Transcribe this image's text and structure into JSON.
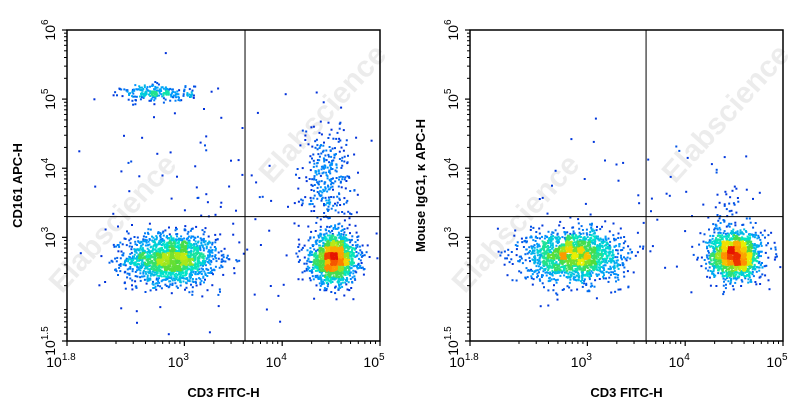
{
  "watermark": "Elabscience",
  "chart_data": [
    {
      "type": "scatter",
      "title": "",
      "xlabel": "CD3 FITC-H",
      "ylabel": "CD161 APC-H",
      "x_scale": "log",
      "y_scale": "log",
      "xlim_exp": [
        1.8,
        5
      ],
      "ylim_exp": [
        1.5,
        6
      ],
      "x_ticks": [
        {
          "base": "10",
          "exp": "1.8"
        },
        {
          "base": "10",
          "exp": "3"
        },
        {
          "base": "10",
          "exp": "4"
        },
        {
          "base": "10",
          "exp": "5"
        }
      ],
      "y_ticks": [
        {
          "base": "10",
          "exp": "1.5"
        },
        {
          "base": "10",
          "exp": "3"
        },
        {
          "base": "10",
          "exp": "4"
        },
        {
          "base": "10",
          "exp": "5"
        },
        {
          "base": "10",
          "exp": "6"
        }
      ],
      "gate_x_exp": 3.62,
      "gate_y_exp": 3.3,
      "colormap": "density (blue-cyan-green-yellow-red)",
      "populations": [
        {
          "x_exp": 2.86,
          "y_exp": 2.7,
          "sx": 0.23,
          "sy": 0.18,
          "n": 1700
        },
        {
          "x_exp": 4.52,
          "y_exp": 2.7,
          "sx": 0.12,
          "sy": 0.17,
          "n": 1500
        },
        {
          "x_exp": 4.45,
          "y_exp": 3.85,
          "sx": 0.12,
          "sy": 0.42,
          "n": 320
        },
        {
          "x_exp": 2.72,
          "y_exp": 5.1,
          "sx": 0.18,
          "sy": 0.06,
          "n": 220
        },
        {
          "x_exp": 3.3,
          "y_exp": 3.2,
          "sx": 0.8,
          "sy": 0.9,
          "n": 120
        }
      ]
    },
    {
      "type": "scatter",
      "title": "",
      "xlabel": "CD3 FITC-H",
      "ylabel": "Mouse IgG1, κ APC-H",
      "x_scale": "log",
      "y_scale": "log",
      "xlim_exp": [
        1.8,
        5
      ],
      "ylim_exp": [
        1.5,
        6
      ],
      "x_ticks": [
        {
          "base": "10",
          "exp": "1.8"
        },
        {
          "base": "10",
          "exp": "3"
        },
        {
          "base": "10",
          "exp": "4"
        },
        {
          "base": "10",
          "exp": "5"
        }
      ],
      "y_ticks": [
        {
          "base": "10",
          "exp": "1.5"
        },
        {
          "base": "10",
          "exp": "3"
        },
        {
          "base": "10",
          "exp": "4"
        },
        {
          "base": "10",
          "exp": "5"
        },
        {
          "base": "10",
          "exp": "6"
        }
      ],
      "gate_x_exp": 3.6,
      "gate_y_exp": 3.3,
      "colormap": "density (blue-cyan-green-yellow-red)",
      "populations": [
        {
          "x_exp": 2.85,
          "y_exp": 2.75,
          "sx": 0.24,
          "sy": 0.18,
          "n": 1700
        },
        {
          "x_exp": 4.5,
          "y_exp": 2.75,
          "sx": 0.13,
          "sy": 0.17,
          "n": 1500
        },
        {
          "x_exp": 4.45,
          "y_exp": 3.4,
          "sx": 0.12,
          "sy": 0.3,
          "n": 60
        },
        {
          "x_exp": 3.3,
          "y_exp": 3.3,
          "sx": 0.8,
          "sy": 0.8,
          "n": 60
        }
      ]
    }
  ]
}
